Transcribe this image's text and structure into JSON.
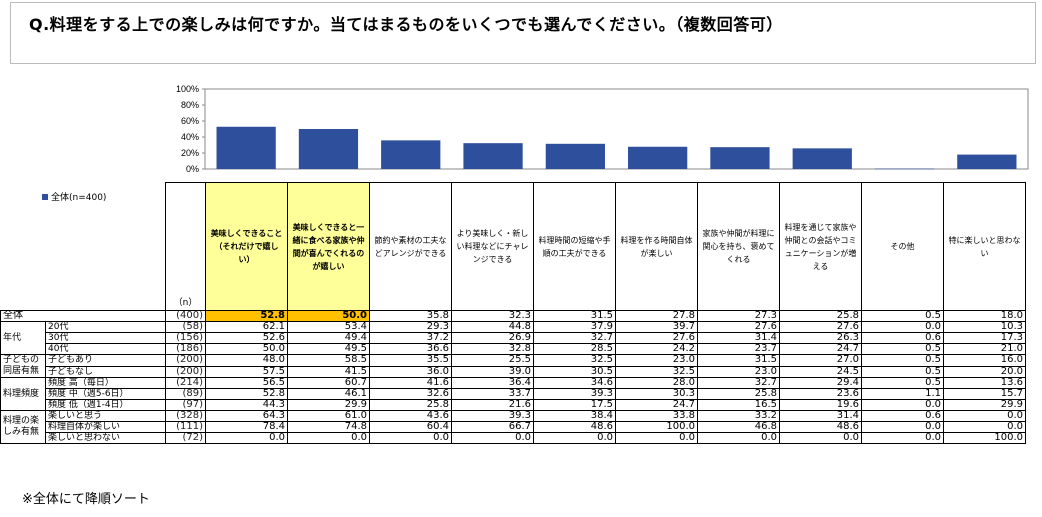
{
  "question": "Q.料理をする上での楽しみは何ですか。当てはまるものをいくつでも選んでください。（複数回答可）",
  "legend_label": "全体(n=400)",
  "n_caption": "（n）",
  "footnote": "※全体にて降順ソート",
  "colors": {
    "bar": "#2e4f9c",
    "highlight": "#ffff99",
    "orange": "#ffc000"
  },
  "chart_data": {
    "type": "bar",
    "categories": [
      "美味しくできること（それだけで嬉しい）",
      "美味しくできると一緒に食べる家族や仲間が喜んでくれるのが嬉しい",
      "節約や素材の工夫などアレンジができる",
      "より美味しく・新しい料理などにチャレンジできる",
      "料理時間の短縮や手順の工夫ができる",
      "料理を作る時間自体が楽しい",
      "家族や仲間が料理に関心を持ち、褒めてくれる",
      "料理を通じて家族や仲間との会話やコミュニケーションが増える",
      "その他",
      "特に楽しいと思わない"
    ],
    "series": [
      {
        "name": "全体(n=400)",
        "values": [
          52.8,
          50.0,
          35.8,
          32.3,
          31.5,
          27.8,
          27.3,
          25.8,
          0.5,
          18.0
        ]
      }
    ],
    "y_ticks": [
      "0%",
      "20%",
      "40%",
      "60%",
      "80%",
      "100%"
    ],
    "ylim": [
      0,
      100
    ],
    "grid": false
  },
  "table": {
    "highlight_cols": [
      0,
      1
    ],
    "rows": [
      {
        "group": "全体",
        "sub": "",
        "n": "(400)",
        "values": [
          "52.8",
          "50.0",
          "35.8",
          "32.3",
          "31.5",
          "27.8",
          "27.3",
          "25.8",
          "0.5",
          "18.0"
        ]
      },
      {
        "group": "年代",
        "sub": "20代",
        "n": "(58)",
        "values": [
          "62.1",
          "53.4",
          "29.3",
          "44.8",
          "37.9",
          "39.7",
          "27.6",
          "27.6",
          "0.0",
          "10.3"
        ]
      },
      {
        "group": "",
        "sub": "30代",
        "n": "(156)",
        "values": [
          "52.6",
          "49.4",
          "37.2",
          "26.9",
          "32.7",
          "27.6",
          "31.4",
          "26.3",
          "0.6",
          "17.3"
        ]
      },
      {
        "group": "",
        "sub": "40代",
        "n": "(186)",
        "values": [
          "50.0",
          "49.5",
          "36.6",
          "32.8",
          "28.5",
          "24.2",
          "23.7",
          "24.7",
          "0.5",
          "21.0"
        ]
      },
      {
        "group": "子どもの同居有無",
        "sub": "子どもあり",
        "n": "(200)",
        "values": [
          "48.0",
          "58.5",
          "35.5",
          "25.5",
          "32.5",
          "23.0",
          "31.5",
          "27.0",
          "0.5",
          "16.0"
        ]
      },
      {
        "group": "",
        "sub": "子どもなし",
        "n": "(200)",
        "values": [
          "57.5",
          "41.5",
          "36.0",
          "39.0",
          "30.5",
          "32.5",
          "23.0",
          "24.5",
          "0.5",
          "20.0"
        ]
      },
      {
        "group": "料理頻度",
        "sub": "頻度 高（毎日）",
        "n": "(214)",
        "values": [
          "56.5",
          "60.7",
          "41.6",
          "36.4",
          "34.6",
          "28.0",
          "32.7",
          "29.4",
          "0.5",
          "13.6"
        ]
      },
      {
        "group": "",
        "sub": "頻度 中（週5-6日）",
        "n": "(89)",
        "values": [
          "52.8",
          "46.1",
          "32.6",
          "33.7",
          "39.3",
          "30.3",
          "25.8",
          "23.6",
          "1.1",
          "15.7"
        ]
      },
      {
        "group": "",
        "sub": "頻度 低（週1-4日）",
        "n": "(97)",
        "values": [
          "44.3",
          "29.9",
          "25.8",
          "21.6",
          "17.5",
          "24.7",
          "16.5",
          "19.6",
          "0.0",
          "29.9"
        ]
      },
      {
        "group": "料理の楽しみ有無",
        "sub": "楽しいと思う",
        "n": "(328)",
        "values": [
          "64.3",
          "61.0",
          "43.6",
          "39.3",
          "38.4",
          "33.8",
          "33.2",
          "31.4",
          "0.6",
          "0.0"
        ]
      },
      {
        "group": "",
        "sub": "料理自体が楽しい",
        "n": "(111)",
        "values": [
          "78.4",
          "74.8",
          "60.4",
          "66.7",
          "48.6",
          "100.0",
          "46.8",
          "48.6",
          "0.0",
          "0.0"
        ]
      },
      {
        "group": "",
        "sub": "楽しいと思わない",
        "n": "(72)",
        "values": [
          "0.0",
          "0.0",
          "0.0",
          "0.0",
          "0.0",
          "0.0",
          "0.0",
          "0.0",
          "0.0",
          "100.0"
        ]
      }
    ]
  }
}
